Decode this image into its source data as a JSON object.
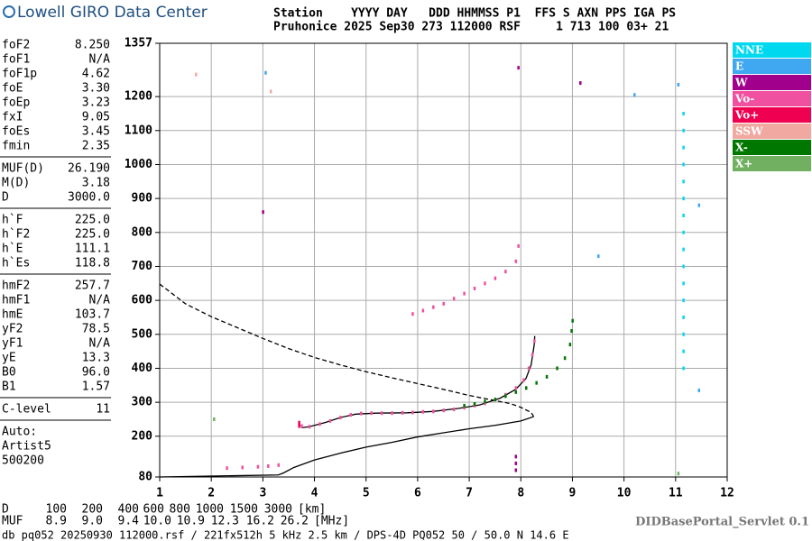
{
  "header": {
    "logo": "Lowell GIRO Data Center",
    "line1": "Station    YYYY DAY   DDD HHMMSS P1  FFS S AXN PPS IGA PS",
    "line2": "Pruhonice 2025 Sep30 273 112000 RSF     1 713 100 03+ 21"
  },
  "parameters": [
    [
      [
        "foF2",
        "8.250"
      ],
      [
        "foF1",
        "N/A"
      ],
      [
        "foF1p",
        "4.62"
      ],
      [
        "foE",
        "3.30"
      ],
      [
        "foEp",
        "3.23"
      ],
      [
        "fxI",
        "9.05"
      ],
      [
        "foEs",
        "3.45"
      ],
      [
        "fmin",
        "2.35"
      ]
    ],
    [
      [
        "MUF(D)",
        "26.190"
      ],
      [
        "M(D)",
        "3.18"
      ],
      [
        "D",
        "3000.0"
      ]
    ],
    [
      [
        "h`F",
        "225.0"
      ],
      [
        "h`F2",
        "225.0"
      ],
      [
        "h`E",
        "111.1"
      ],
      [
        "h`Es",
        "118.8"
      ]
    ],
    [
      [
        "hmF2",
        "257.7"
      ],
      [
        "hmF1",
        "N/A"
      ],
      [
        "hmE",
        "103.7"
      ],
      [
        "yF2",
        "78.5"
      ],
      [
        "yF1",
        "N/A"
      ],
      [
        "yE",
        "13.3"
      ],
      [
        "B0",
        "96.0"
      ],
      [
        "B1",
        "1.57"
      ]
    ],
    [
      [
        "C-level",
        "11"
      ]
    ]
  ],
  "notes": [
    "Auto:",
    "Artist5",
    "500200"
  ],
  "chart_data": {
    "type": "scatter",
    "xlim": [
      1,
      12
    ],
    "xticks": [
      1,
      2,
      3,
      4,
      5,
      6,
      7,
      8,
      9,
      10,
      11,
      12
    ],
    "ylim": [
      80,
      1357
    ],
    "yticks": [
      80,
      200,
      300,
      400,
      500,
      600,
      700,
      800,
      900,
      1000,
      1100,
      1200,
      1357
    ],
    "grid": true,
    "series": [
      {
        "name": "NNE",
        "color": "#00d8f0",
        "x": [
          11.15,
          11.15,
          11.15,
          11.15,
          11.15,
          11.15,
          11.15,
          11.15,
          11.15,
          11.15,
          11.15,
          11.15,
          11.15,
          11.15,
          11.15,
          11.15
        ],
        "y": [
          400,
          450,
          500,
          550,
          600,
          650,
          700,
          750,
          800,
          850,
          900,
          950,
          1000,
          1050,
          1100,
          1150
        ]
      },
      {
        "name": "E",
        "color": "#40a8f0",
        "x": [
          10.2,
          11.05,
          9.5,
          11.45,
          11.45,
          3.05
        ],
        "y": [
          1205,
          1235,
          730,
          880,
          335,
          1270
        ]
      },
      {
        "name": "W",
        "color": "#a0008c",
        "x": [
          7.95,
          3.0,
          9.15,
          7.9,
          7.9,
          7.9
        ],
        "y": [
          1285,
          860,
          1240,
          100,
          120,
          140
        ]
      },
      {
        "name": "Vo-",
        "color": "#f050a0",
        "x": [
          3.75,
          3.9,
          4.1,
          4.3,
          4.5,
          4.7,
          4.9,
          5.1,
          5.3,
          5.5,
          5.7,
          5.9,
          6.1,
          6.3,
          6.5,
          6.7,
          6.9,
          7.1,
          7.3,
          7.5,
          7.7,
          7.9,
          8.05,
          8.15,
          8.22,
          8.26,
          5.9,
          6.1,
          6.3,
          6.5,
          6.7,
          6.9,
          7.1,
          7.3,
          7.5,
          7.7,
          7.9,
          7.95,
          2.3,
          2.6,
          2.9,
          3.1,
          3.3
        ],
        "y": [
          230,
          228,
          236,
          245,
          255,
          263,
          267,
          268,
          268,
          268,
          269,
          270,
          272,
          273,
          276,
          279,
          284,
          290,
          297,
          308,
          322,
          342,
          365,
          400,
          440,
          480,
          560,
          570,
          580,
          590,
          605,
          620,
          635,
          650,
          665,
          685,
          715,
          760,
          106,
          108,
          110,
          112,
          115
        ]
      },
      {
        "name": "Vo+",
        "color": "#f00050",
        "x": [
          3.7,
          3.7
        ],
        "y": [
          240,
          230
        ]
      },
      {
        "name": "SSW",
        "color": "#f0a8a0",
        "x": [
          1.7,
          3.15
        ],
        "y": [
          1265,
          1215
        ]
      },
      {
        "name": "X-",
        "color": "#007800",
        "x": [
          6.9,
          7.1,
          7.3,
          7.5,
          7.7,
          7.9,
          8.1,
          8.3,
          8.5,
          8.7,
          8.85,
          8.95,
          8.98,
          9.0
        ],
        "y": [
          290,
          295,
          302,
          308,
          318,
          330,
          342,
          357,
          375,
          400,
          430,
          470,
          510,
          540
        ]
      },
      {
        "name": "X+",
        "color": "#70b060",
        "x": [
          11.05,
          2.05
        ],
        "y": [
          90,
          250
        ]
      }
    ],
    "lines": [
      {
        "color": "#000000",
        "dashed": false,
        "x": [
          1,
          3.3,
          3.4,
          3.6,
          4,
          4.5,
          5,
          5.5,
          6,
          6.5,
          7,
          7.5,
          8,
          8.25
        ],
        "y": [
          80,
          86,
          92,
          108,
          130,
          150,
          168,
          182,
          198,
          210,
          222,
          232,
          245,
          257.7
        ]
      },
      {
        "color": "#000000",
        "dashed": false,
        "x": [
          3.75,
          3.9,
          4.2,
          4.5,
          4.8,
          5.2,
          5.8,
          6.3,
          6.8,
          7.2,
          7.6,
          7.9,
          8.1,
          8.2,
          8.26,
          8.27
        ],
        "y": [
          225,
          228,
          240,
          255,
          265,
          268,
          269,
          273,
          282,
          292,
          312,
          338,
          370,
          410,
          470,
          495
        ]
      },
      {
        "color": "#000000",
        "dashed": true,
        "x": [
          1,
          1.5,
          2,
          2.5,
          3,
          3.5,
          4,
          4.5,
          5,
          5.5,
          6,
          6.5,
          7,
          7.5,
          7.8,
          8,
          8.2,
          8.25
        ],
        "y": [
          648,
          590,
          552,
          520,
          488,
          458,
          432,
          410,
          390,
          372,
          355,
          338,
          320,
          305,
          296,
          285,
          270,
          257.7
        ]
      }
    ]
  },
  "footer": {
    "rows": [
      [
        "D",
        "100",
        "200",
        "400",
        "600",
        "800",
        "1000",
        "1500",
        "3000",
        "[km]"
      ],
      [
        "MUF",
        "8.9",
        "9.0",
        "9.4",
        "10.0",
        "10.9",
        "12.3",
        "16.2",
        "26.2",
        "[MHz]"
      ]
    ],
    "servlet": "DIDBasePortal_Servlet 0.1",
    "info": "db pq052 20250930 112000.rsf / 221fx512h 5 kHz 2.5 km / DPS-4D PQ052 50 / 50.0 N 14.6 E"
  }
}
